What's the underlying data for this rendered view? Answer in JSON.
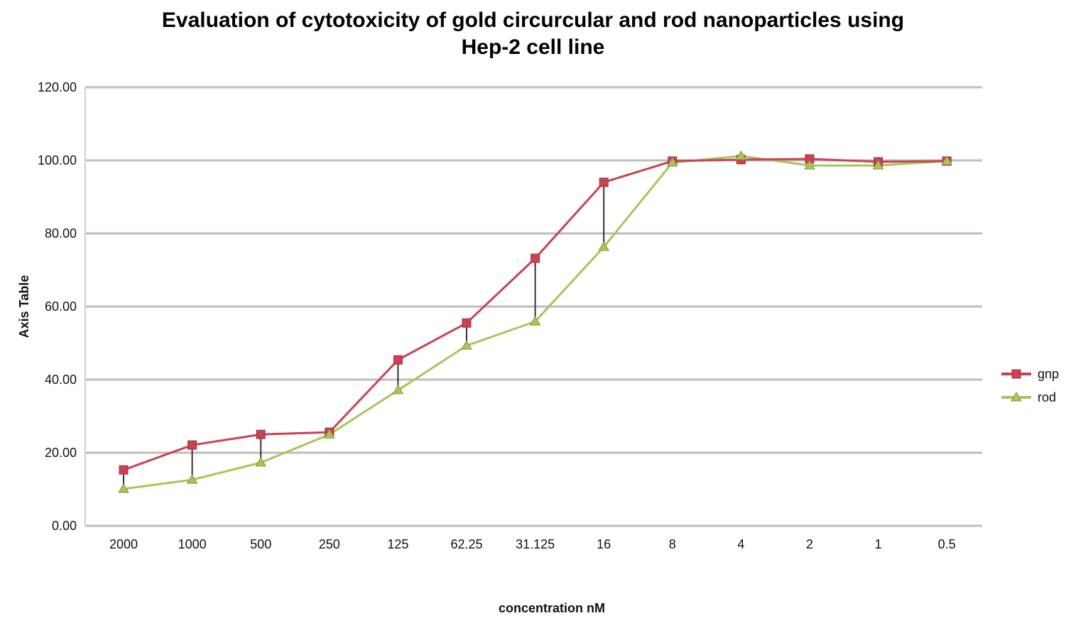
{
  "chart_data": {
    "type": "line",
    "title_line1": "Evaluation of cytotoxicity of gold circurcular and rod nanoparticles using",
    "title_line2": "Hep-2 cell line",
    "xlabel": "concentration nM",
    "ylabel": "Axis Table",
    "categories": [
      "2000",
      "1000",
      "500",
      "250",
      "125",
      "62.25",
      "31.125",
      "16",
      "8",
      "4",
      "2",
      "1",
      "0.5"
    ],
    "ylim": [
      0,
      120
    ],
    "yticks": [
      "0.00",
      "20.00",
      "40.00",
      "60.00",
      "80.00",
      "100.00",
      "120.00"
    ],
    "grid": true,
    "legend_position": "right",
    "series": [
      {
        "name": "gnp",
        "color": "#c8434f",
        "marker": "square",
        "values": [
          15.3,
          22.1,
          25.0,
          25.6,
          45.4,
          55.5,
          73.2,
          94.0,
          99.8,
          100.2,
          100.4,
          99.6,
          99.8
        ]
      },
      {
        "name": "rod",
        "color": "#a9c55a",
        "marker": "triangle",
        "values": [
          10.1,
          12.6,
          17.3,
          25.0,
          37.1,
          49.3,
          55.9,
          76.3,
          99.4,
          101.2,
          98.6,
          98.6,
          99.8
        ]
      }
    ]
  }
}
